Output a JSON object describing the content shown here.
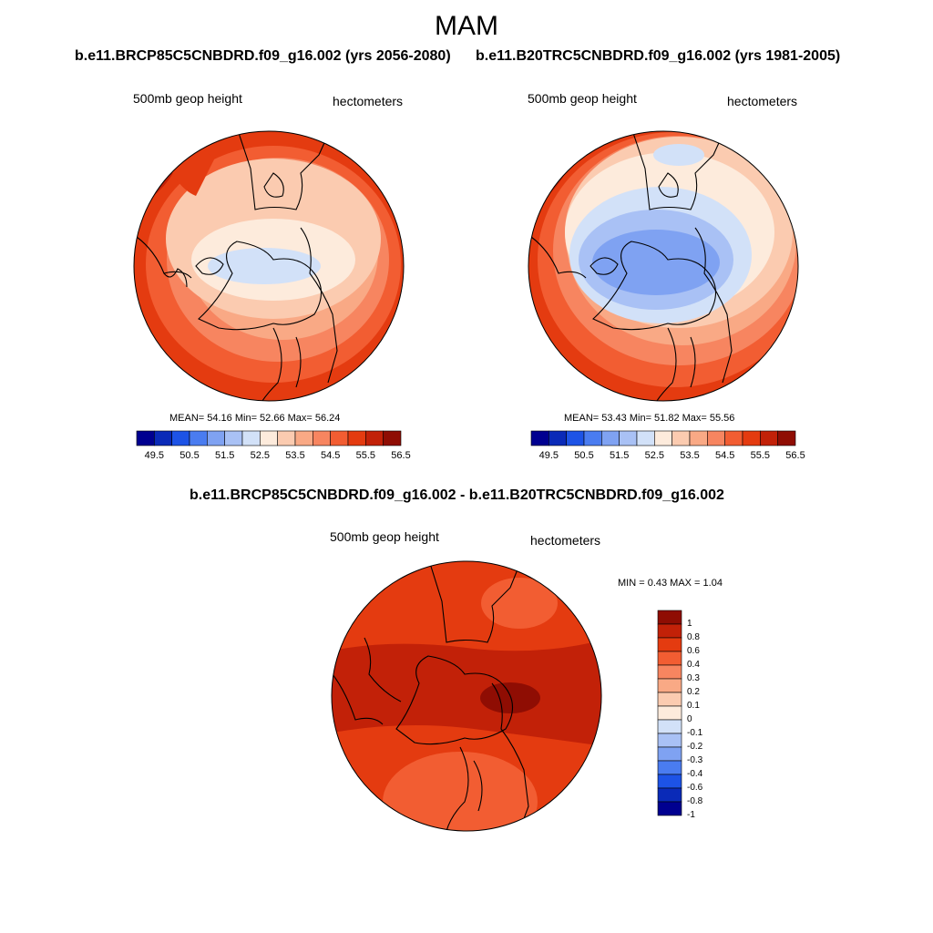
{
  "figure": {
    "title": "MAM",
    "top_left_subtitle": "b.e11.BRCP85C5CNBDRD.f09_g16.002 (yrs 2056-2080)",
    "top_right_subtitle": "b.e11.B20TRC5CNBDRD.f09_g16.002 (yrs 1981-2005)",
    "diff_subtitle": "b.e11.BRCP85C5CNBDRD.f09_g16.002 - b.e11.B20TRC5CNBDRD.f09_g16.002"
  },
  "panels": {
    "future": {
      "variable": "500mb geop height",
      "units": "hectometers",
      "stats_text": "MEAN=  54.16  Min=  52.66  Max=  56.24",
      "mean": 54.16,
      "min": 52.66,
      "max": 56.24
    },
    "historical": {
      "variable": "500mb geop height",
      "units": "hectometers",
      "stats_text": "MEAN=  53.43  Min=  51.82  Max=  55.56",
      "mean": 53.43,
      "min": 51.82,
      "max": 55.56
    },
    "difference": {
      "variable": "500mb geop height",
      "units": "hectometers",
      "stats_text": "MIN =   0.43 MAX =   1.04",
      "min": 0.43,
      "max": 1.04
    }
  },
  "colorbar_abs": {
    "labels": [
      "49.5",
      "50.5",
      "51.5",
      "52.5",
      "53.5",
      "54.5",
      "55.5",
      "56.5"
    ],
    "colors": [
      "#000090",
      "#0a2ab8",
      "#1d53e6",
      "#4a7cf0",
      "#7fa2f2",
      "#a9c1f5",
      "#d2e1f8",
      "#fdebdc",
      "#fbcbb0",
      "#f9a985",
      "#f78560",
      "#f25d32",
      "#e43b10",
      "#c22108",
      "#8f0d03"
    ]
  },
  "colorbar_diff": {
    "labels": [
      "1",
      "0.8",
      "0.6",
      "0.4",
      "0.3",
      "0.2",
      "0.1",
      "0",
      "-0.1",
      "-0.2",
      "-0.3",
      "-0.4",
      "-0.6",
      "-0.8",
      "-1"
    ],
    "colors": [
      "#8f0d03",
      "#c22108",
      "#e43b10",
      "#f25d32",
      "#f78560",
      "#f9a985",
      "#fbcbb0",
      "#fdebdc",
      "#d2e1f8",
      "#a9c1f5",
      "#7fa2f2",
      "#4a7cf0",
      "#1d53e6",
      "#0a2ab8",
      "#000090"
    ]
  }
}
